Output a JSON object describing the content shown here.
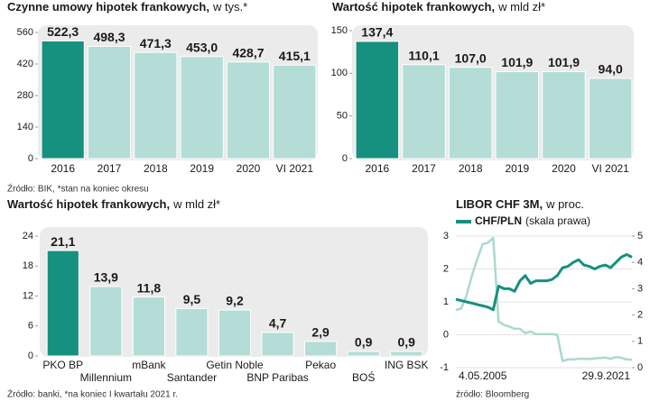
{
  "chart_data": [
    {
      "type": "bar",
      "title": "Czynne umowy hipotek frankowych,",
      "unit": "w tys.*",
      "categories": [
        "2016",
        "2017",
        "2018",
        "2019",
        "2020",
        "VI 2021"
      ],
      "values": [
        522.3,
        498.3,
        471.3,
        453.0,
        428.7,
        415.1
      ],
      "value_labels": [
        "522,3",
        "498,3",
        "471,3",
        "453,0",
        "428,7",
        "415,1"
      ],
      "colors": [
        "#16907f",
        "#b3ddd6",
        "#b3ddd6",
        "#b3ddd6",
        "#b3ddd6",
        "#b3ddd6"
      ],
      "ylim": [
        0,
        560
      ],
      "yticks": [
        0,
        140,
        280,
        420,
        560
      ],
      "source": "Źródło: BIK, *stan na koniec okresu"
    },
    {
      "type": "bar",
      "title": "Wartość hipotek frankowych,",
      "unit": "w mld zł*",
      "categories": [
        "2016",
        "2017",
        "2018",
        "2019",
        "2020",
        "VI 2021"
      ],
      "values": [
        137.4,
        110.1,
        107.0,
        101.9,
        101.9,
        94.0
      ],
      "value_labels": [
        "137,4",
        "110,1",
        "107,0",
        "101,9",
        "101,9",
        "94,0"
      ],
      "colors": [
        "#16907f",
        "#b3ddd6",
        "#b3ddd6",
        "#b3ddd6",
        "#b3ddd6",
        "#b3ddd6"
      ],
      "ylim": [
        0,
        150
      ],
      "yticks": [
        0,
        50,
        100,
        150
      ]
    },
    {
      "type": "bar",
      "title": "Wartość hipotek frankowych,",
      "unit": "w mld zł*",
      "categories": [
        "PKO BP",
        "Millennium",
        "mBank",
        "Santander",
        "Getin Noble",
        "BNP Paribas",
        "Pekao",
        "BOŚ",
        "ING BSK"
      ],
      "values": [
        21.1,
        13.9,
        11.8,
        9.5,
        9.2,
        4.7,
        2.9,
        0.9,
        0.9
      ],
      "value_labels": [
        "21,1",
        "13,9",
        "11,8",
        "9,5",
        "9,2",
        "4,7",
        "2,9",
        "0,9",
        "0,9"
      ],
      "colors": [
        "#16907f",
        "#b3ddd6",
        "#b3ddd6",
        "#b3ddd6",
        "#b3ddd6",
        "#b3ddd6",
        "#b3ddd6",
        "#b3ddd6",
        "#b3ddd6"
      ],
      "ylim": [
        0,
        24
      ],
      "yticks": [
        0,
        6,
        12,
        18,
        24
      ],
      "source": "Źródło: banki, *na koniec I kwartału 2021 r."
    },
    {
      "type": "line",
      "title": "LIBOR CHF 3M,",
      "unit": "w proc.",
      "categories": [
        "4.05.2005",
        null,
        null,
        null,
        null,
        null,
        null,
        null,
        null,
        null,
        null,
        null,
        null,
        null,
        null,
        null,
        null,
        null,
        null,
        null,
        null,
        null,
        null,
        null,
        null,
        null,
        null,
        null,
        null,
        null,
        null,
        null,
        null,
        "29.9.2021"
      ],
      "series": [
        {
          "color": "#a9d9d1",
          "values": [
            0.75,
            0.8,
            1.2,
            1.8,
            2.3,
            2.75,
            2.8,
            2.95,
            0.4,
            0.3,
            0.25,
            0.18,
            0.18,
            0.05,
            0.1,
            0.02,
            0.02,
            0.02,
            0.02,
            0.0,
            -0.8,
            -0.75,
            -0.75,
            -0.73,
            -0.73,
            -0.74,
            -0.72,
            -0.71,
            -0.69,
            -0.73,
            -0.68,
            -0.7,
            -0.75,
            -0.76
          ]
        },
        {
          "name": "CHF/PLN",
          "axis": "y2",
          "color": "#16907f",
          "values": [
            2.6,
            2.55,
            2.5,
            2.45,
            2.4,
            2.35,
            2.3,
            2.2,
            3.1,
            3.0,
            3.0,
            2.9,
            3.3,
            3.5,
            3.2,
            3.3,
            3.3,
            3.3,
            3.35,
            3.5,
            3.8,
            3.85,
            4.0,
            4.1,
            3.9,
            3.85,
            3.75,
            3.85,
            3.9,
            3.8,
            4.0,
            4.2,
            4.3,
            4.2
          ]
        }
      ],
      "legend_suffix": "(skala prawa)",
      "ylim": [
        -1,
        3
      ],
      "yticks": [
        -1,
        0,
        1,
        2,
        3
      ],
      "y2lim": [
        0,
        5
      ],
      "y2ticks": [
        0,
        1,
        2,
        3,
        4,
        5
      ],
      "source": "źródło: Bloomberg"
    }
  ]
}
